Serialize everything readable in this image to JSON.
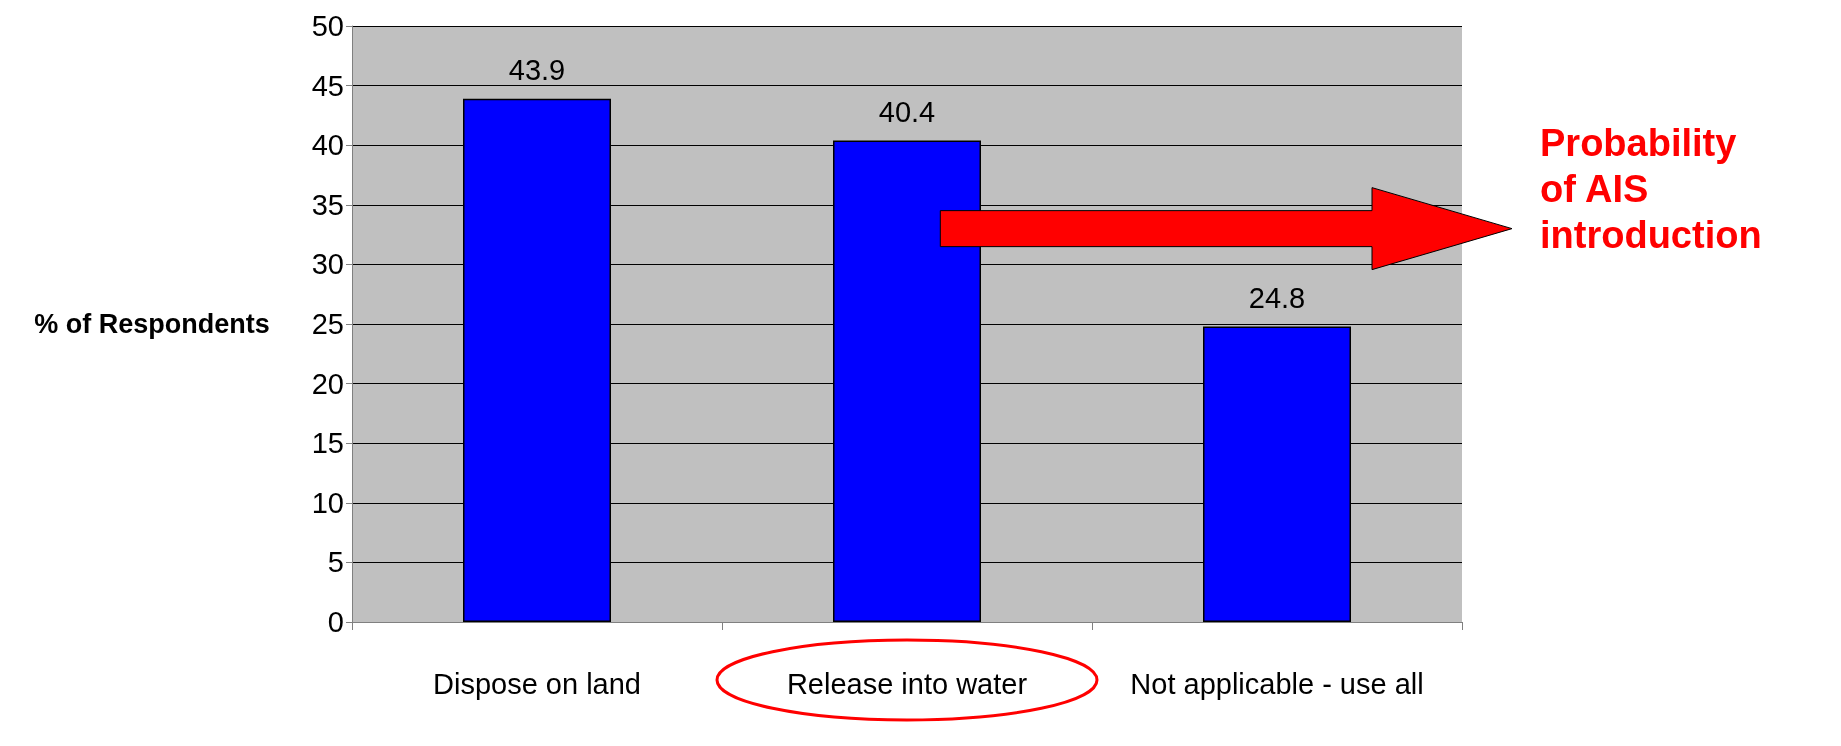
{
  "chart_data": {
    "type": "bar",
    "ylabel": "% of Respondents",
    "categories": [
      "Dispose on land",
      "Release into water",
      "Not applicable - use all"
    ],
    "values": [
      43.9,
      40.4,
      24.8
    ],
    "color": "#0000ff",
    "data_labels": true,
    "ylim": [
      0,
      50
    ],
    "yticks": [
      0,
      5,
      10,
      15,
      20,
      25,
      30,
      35,
      40,
      45,
      50
    ],
    "grid": "y",
    "annotations": [
      "Probability of AIS introduction"
    ]
  }
}
